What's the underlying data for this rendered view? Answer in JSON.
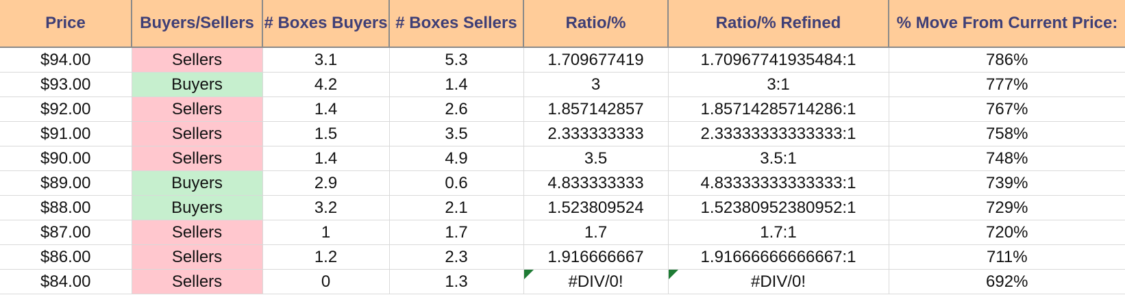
{
  "headers": [
    "Price",
    "Buyers/Sellers",
    "# Boxes Buyers",
    "# Boxes Sellers",
    "Ratio/%",
    "Ratio/% Refined",
    "% Move From Current Price:"
  ],
  "rows": [
    {
      "price": "$94.00",
      "side": "Sellers",
      "buyers": "3.1",
      "sellers": "5.3",
      "ratio": "1.709677419",
      "refined": "1.70967741935484:1",
      "move": "786%"
    },
    {
      "price": "$93.00",
      "side": "Buyers",
      "buyers": "4.2",
      "sellers": "1.4",
      "ratio": "3",
      "refined": "3:1",
      "move": "777%"
    },
    {
      "price": "$92.00",
      "side": "Sellers",
      "buyers": "1.4",
      "sellers": "2.6",
      "ratio": "1.857142857",
      "refined": "1.85714285714286:1",
      "move": "767%"
    },
    {
      "price": "$91.00",
      "side": "Sellers",
      "buyers": "1.5",
      "sellers": "3.5",
      "ratio": "2.333333333",
      "refined": "2.33333333333333:1",
      "move": "758%"
    },
    {
      "price": "$90.00",
      "side": "Sellers",
      "buyers": "1.4",
      "sellers": "4.9",
      "ratio": "3.5",
      "refined": "3.5:1",
      "move": "748%"
    },
    {
      "price": "$89.00",
      "side": "Buyers",
      "buyers": "2.9",
      "sellers": "0.6",
      "ratio": "4.833333333",
      "refined": "4.83333333333333:1",
      "move": "739%"
    },
    {
      "price": "$88.00",
      "side": "Buyers",
      "buyers": "3.2",
      "sellers": "2.1",
      "ratio": "1.523809524",
      "refined": "1.52380952380952:1",
      "move": "729%"
    },
    {
      "price": "$87.00",
      "side": "Sellers",
      "buyers": "1",
      "sellers": "1.7",
      "ratio": "1.7",
      "refined": "1.7:1",
      "move": "720%"
    },
    {
      "price": "$86.00",
      "side": "Sellers",
      "buyers": "1.2",
      "sellers": "2.3",
      "ratio": "1.916666667",
      "refined": "1.91666666666667:1",
      "move": "711%"
    },
    {
      "price": "$84.00",
      "side": "Sellers",
      "buyers": "0",
      "sellers": "1.3",
      "ratio": "#DIV/0!",
      "refined": "#DIV/0!",
      "move": "692%"
    }
  ],
  "colors": {
    "header_bg": "#ffcc99",
    "header_text": "#3f3f76",
    "sellers_bg": "#ffc7ce",
    "sellers_text": "#9c0006",
    "buyers_bg": "#c6efce",
    "buyers_text": "#006100",
    "error_flag": "#1e7b34"
  }
}
